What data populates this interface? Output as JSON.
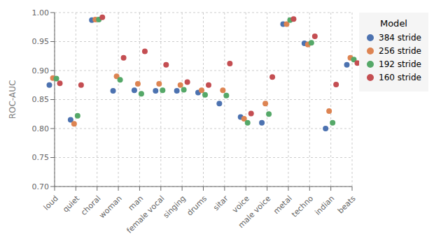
{
  "chart_data": {
    "type": "scatter",
    "y_label": "ROC-AUC",
    "legend_title": "Model",
    "legend": "right",
    "grid": true,
    "categories": [
      "loud",
      "quiet",
      "choral",
      "woman",
      "man",
      "female vocal",
      "singing",
      "drums",
      "sitar",
      "voice",
      "male voice",
      "metal",
      "techno",
      "indian",
      "beats"
    ],
    "series": [
      {
        "name": "384 stride",
        "color": "#4c72b0",
        "marker": "circle",
        "values": [
          0.875,
          0.815,
          0.987,
          0.865,
          0.866,
          0.865,
          0.865,
          0.862,
          0.843,
          0.82,
          0.81,
          0.98,
          0.947,
          0.8,
          0.91
        ]
      },
      {
        "name": "256 stride",
        "color": "#dd8452",
        "marker": "circle",
        "values": [
          0.887,
          0.808,
          0.988,
          0.89,
          0.877,
          0.877,
          0.875,
          0.866,
          0.866,
          0.817,
          0.843,
          0.98,
          0.945,
          0.83,
          0.922
        ]
      },
      {
        "name": "192 stride",
        "color": "#55a868",
        "marker": "circle",
        "values": [
          0.886,
          0.822,
          0.988,
          0.884,
          0.86,
          0.866,
          0.867,
          0.858,
          0.857,
          0.81,
          0.825,
          0.987,
          0.948,
          0.81,
          0.919
        ]
      },
      {
        "name": "160 stride",
        "color": "#c44e52",
        "marker": "circle",
        "values": [
          0.878,
          0.875,
          0.992,
          0.922,
          0.933,
          0.91,
          0.88,
          0.875,
          0.912,
          0.826,
          0.889,
          0.989,
          0.959,
          0.876,
          0.913
        ]
      }
    ],
    "ylim": [
      0.7,
      1.0
    ],
    "yticks": [
      {
        "value": 0.7,
        "label": "0.70"
      },
      {
        "value": 0.75,
        "label": "0.75"
      },
      {
        "value": 0.8,
        "label": "0.80"
      },
      {
        "value": 0.85,
        "label": "0.85"
      },
      {
        "value": 0.9,
        "label": "0.90"
      },
      {
        "value": 0.95,
        "label": "0.95"
      },
      {
        "value": 1.0,
        "label": "1.00"
      }
    ]
  }
}
